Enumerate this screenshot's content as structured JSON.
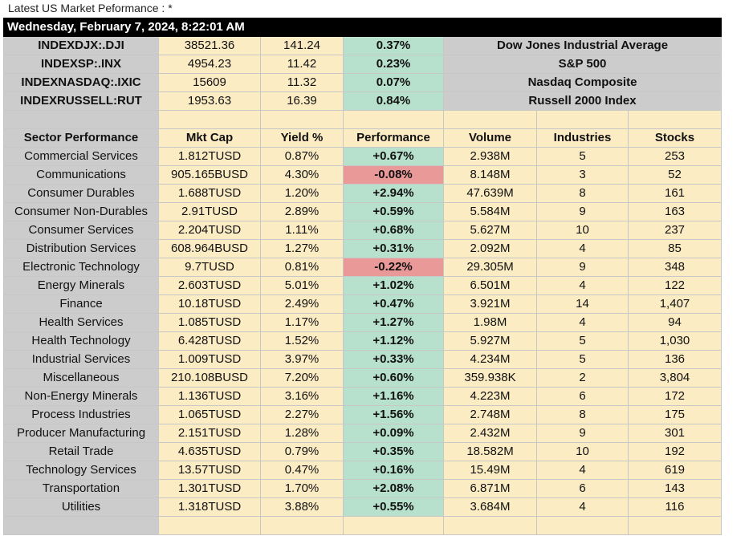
{
  "page_title": "Latest US Market Peformance : *",
  "banner": "Wednesday, February 7, 2024, 8:22:01 AM",
  "colors": {
    "positive": "#b7e1cd",
    "negative": "#ea9999",
    "cream": "#fcecc4",
    "gray": "#cccccc"
  },
  "indices": [
    {
      "ticker": "INDEXDJX:.DJI",
      "price": "38521.36",
      "change": "141.24",
      "pct": "0.37%",
      "name": "Dow Jones Industrial Average"
    },
    {
      "ticker": "INDEXSP:.INX",
      "price": "4954.23",
      "change": "11.42",
      "pct": "0.23%",
      "name": "S&P 500"
    },
    {
      "ticker": "INDEXNASDAQ:.IXIC",
      "price": "15609",
      "change": "11.32",
      "pct": "0.07%",
      "name": "Nasdaq Composite"
    },
    {
      "ticker": "INDEXRUSSELL:RUT",
      "price": "1953.63",
      "change": "16.39",
      "pct": "0.84%",
      "name": "Russell 2000 Index"
    }
  ],
  "headers": [
    "Sector Performance",
    "Mkt Cap",
    "Yield %",
    "Performance",
    "Volume",
    "Industries",
    "Stocks"
  ],
  "sectors": [
    {
      "sector": "Commercial Services",
      "mkt_cap": "1.812TUSD",
      "yield": "0.87%",
      "perf": "+0.67%",
      "volume": "2.938M",
      "industries": "5",
      "stocks": "253",
      "neg": false
    },
    {
      "sector": "Communications",
      "mkt_cap": "905.165BUSD",
      "yield": "4.30%",
      "perf": "-0.08%",
      "volume": "8.148M",
      "industries": "3",
      "stocks": "52",
      "neg": true
    },
    {
      "sector": "Consumer Durables",
      "mkt_cap": "1.688TUSD",
      "yield": "1.20%",
      "perf": "+2.94%",
      "volume": "47.639M",
      "industries": "8",
      "stocks": "161",
      "neg": false
    },
    {
      "sector": "Consumer Non-Durables",
      "mkt_cap": "2.91TUSD",
      "yield": "2.89%",
      "perf": "+0.59%",
      "volume": "5.584M",
      "industries": "9",
      "stocks": "163",
      "neg": false
    },
    {
      "sector": "Consumer Services",
      "mkt_cap": "2.204TUSD",
      "yield": "1.11%",
      "perf": "+0.68%",
      "volume": "5.627M",
      "industries": "10",
      "stocks": "237",
      "neg": false
    },
    {
      "sector": "Distribution Services",
      "mkt_cap": "608.964BUSD",
      "yield": "1.27%",
      "perf": "+0.31%",
      "volume": "2.092M",
      "industries": "4",
      "stocks": "85",
      "neg": false
    },
    {
      "sector": "Electronic Technology",
      "mkt_cap": "9.7TUSD",
      "yield": "0.81%",
      "perf": "-0.22%",
      "volume": "29.305M",
      "industries": "9",
      "stocks": "348",
      "neg": true
    },
    {
      "sector": "Energy Minerals",
      "mkt_cap": "2.603TUSD",
      "yield": "5.01%",
      "perf": "+1.02%",
      "volume": "6.501M",
      "industries": "4",
      "stocks": "122",
      "neg": false
    },
    {
      "sector": "Finance",
      "mkt_cap": "10.18TUSD",
      "yield": "2.49%",
      "perf": "+0.47%",
      "volume": "3.921M",
      "industries": "14",
      "stocks": "1,407",
      "neg": false
    },
    {
      "sector": "Health Services",
      "mkt_cap": "1.085TUSD",
      "yield": "1.17%",
      "perf": "+1.27%",
      "volume": "1.98M",
      "industries": "4",
      "stocks": "94",
      "neg": false
    },
    {
      "sector": "Health Technology",
      "mkt_cap": "6.428TUSD",
      "yield": "1.52%",
      "perf": "+1.12%",
      "volume": "5.927M",
      "industries": "5",
      "stocks": "1,030",
      "neg": false
    },
    {
      "sector": "Industrial Services",
      "mkt_cap": "1.009TUSD",
      "yield": "3.97%",
      "perf": "+0.33%",
      "volume": "4.234M",
      "industries": "5",
      "stocks": "136",
      "neg": false
    },
    {
      "sector": "Miscellaneous",
      "mkt_cap": "210.108BUSD",
      "yield": "7.20%",
      "perf": "+0.60%",
      "volume": "359.938K",
      "industries": "2",
      "stocks": "3,804",
      "neg": false
    },
    {
      "sector": "Non-Energy Minerals",
      "mkt_cap": "1.136TUSD",
      "yield": "3.16%",
      "perf": "+1.16%",
      "volume": "4.223M",
      "industries": "6",
      "stocks": "172",
      "neg": false
    },
    {
      "sector": "Process Industries",
      "mkt_cap": "1.065TUSD",
      "yield": "2.27%",
      "perf": "+1.56%",
      "volume": "2.748M",
      "industries": "8",
      "stocks": "175",
      "neg": false
    },
    {
      "sector": "Producer Manufacturing",
      "mkt_cap": "2.151TUSD",
      "yield": "1.28%",
      "perf": "+0.09%",
      "volume": "2.432M",
      "industries": "9",
      "stocks": "301",
      "neg": false
    },
    {
      "sector": "Retail Trade",
      "mkt_cap": "4.635TUSD",
      "yield": "0.79%",
      "perf": "+0.35%",
      "volume": "18.582M",
      "industries": "10",
      "stocks": "192",
      "neg": false
    },
    {
      "sector": "Technology Services",
      "mkt_cap": "13.57TUSD",
      "yield": "0.47%",
      "perf": "+0.16%",
      "volume": "15.49M",
      "industries": "4",
      "stocks": "619",
      "neg": false
    },
    {
      "sector": "Transportation",
      "mkt_cap": "1.301TUSD",
      "yield": "1.70%",
      "perf": "+2.08%",
      "volume": "6.871M",
      "industries": "6",
      "stocks": "143",
      "neg": false
    },
    {
      "sector": "Utilities",
      "mkt_cap": "1.318TUSD",
      "yield": "3.88%",
      "perf": "+0.55%",
      "volume": "3.684M",
      "industries": "4",
      "stocks": "116",
      "neg": false
    }
  ]
}
